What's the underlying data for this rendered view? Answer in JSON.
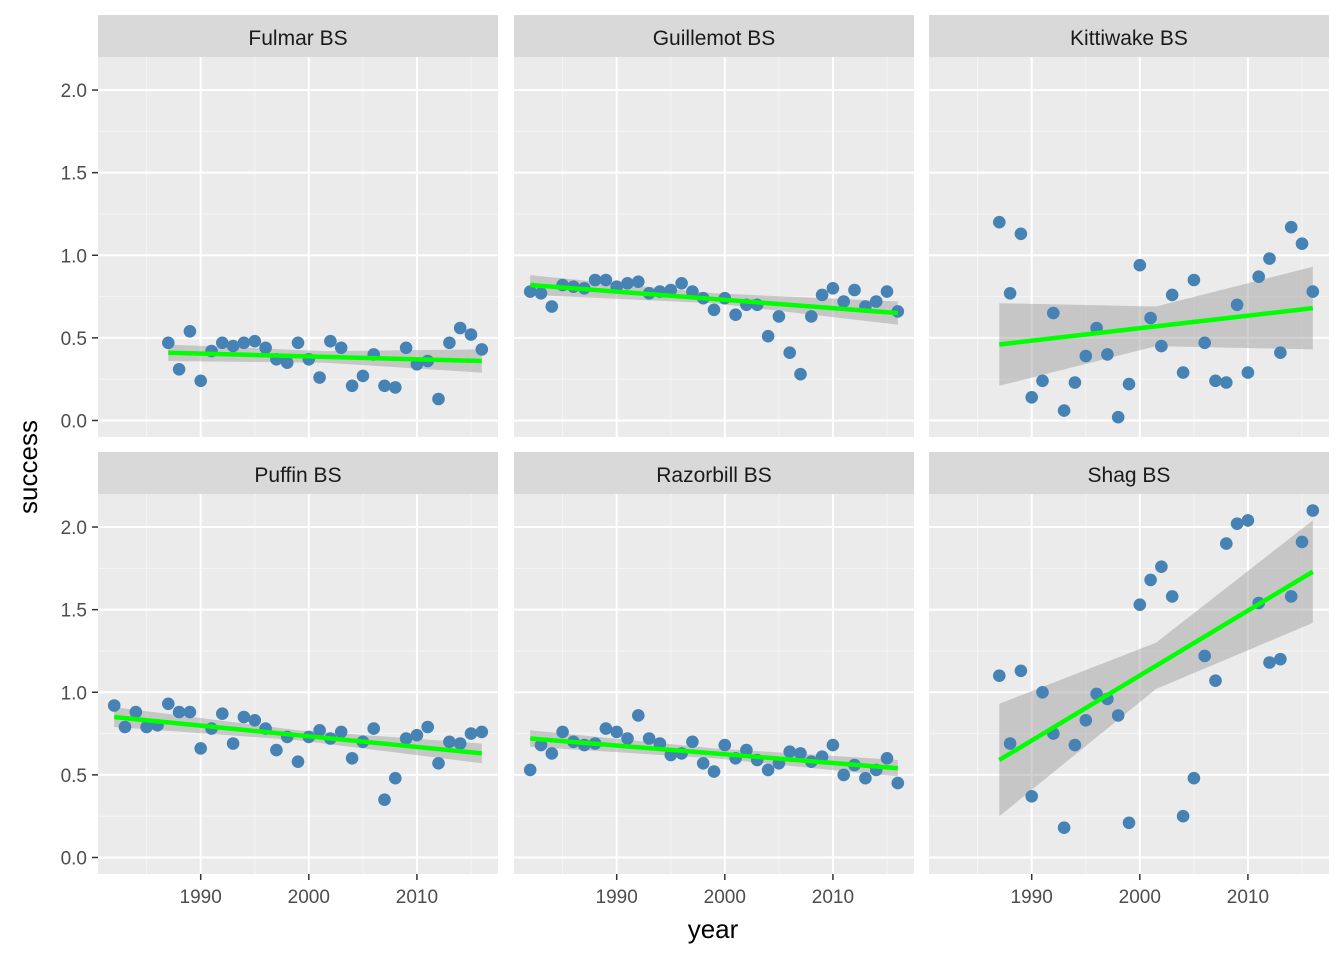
{
  "chart_data": {
    "type": "scatter",
    "xlabel": "year",
    "ylabel": "success",
    "xlim": [
      1980.5,
      2017.5
    ],
    "ylim": [
      -0.1,
      2.2
    ],
    "x_ticks": [
      1990,
      2000,
      2010
    ],
    "y_ticks": [
      0.0,
      0.5,
      1.0,
      1.5,
      2.0
    ],
    "y_tick_labels": [
      "0.0",
      "0.5",
      "1.0",
      "1.5",
      "2.0"
    ],
    "x_tick_labels": [
      "1990",
      "2000",
      "2010"
    ],
    "grid": true,
    "point_color": "#4682B4",
    "trend_color": "#00FF00",
    "band_color": "#999999",
    "panels": [
      {
        "title": "Fulmar BS",
        "x": [
          1987,
          1988,
          1989,
          1990,
          1991,
          1992,
          1993,
          1994,
          1995,
          1996,
          1997,
          1998,
          1999,
          2000,
          2001,
          2002,
          2003,
          2004,
          2005,
          2006,
          2007,
          2008,
          2009,
          2010,
          2011,
          2012,
          2013,
          2014,
          2015,
          2016
        ],
        "y": [
          0.47,
          0.31,
          0.54,
          0.24,
          0.42,
          0.47,
          0.45,
          0.47,
          0.48,
          0.44,
          0.37,
          0.35,
          0.47,
          0.37,
          0.26,
          0.48,
          0.44,
          0.21,
          0.27,
          0.4,
          0.21,
          0.2,
          0.44,
          0.34,
          0.36,
          0.13,
          0.47,
          0.56,
          0.52,
          0.43
        ],
        "trend": {
          "x": [
            1987,
            2016
          ],
          "y": [
            0.41,
            0.36
          ]
        },
        "band": {
          "x": [
            1987,
            2001.5,
            2016
          ],
          "lower": [
            0.36,
            0.35,
            0.29
          ],
          "upper": [
            0.46,
            0.42,
            0.43
          ]
        }
      },
      {
        "title": "Guillemot BS",
        "x": [
          1982,
          1983,
          1984,
          1985,
          1986,
          1987,
          1988,
          1989,
          1990,
          1991,
          1992,
          1993,
          1994,
          1995,
          1996,
          1997,
          1998,
          1999,
          2000,
          2001,
          2002,
          2003,
          2004,
          2005,
          2006,
          2007,
          2008,
          2009,
          2010,
          2011,
          2012,
          2013,
          2014,
          2015,
          2016
        ],
        "y": [
          0.78,
          0.77,
          0.69,
          0.82,
          0.81,
          0.8,
          0.85,
          0.85,
          0.81,
          0.83,
          0.84,
          0.77,
          0.78,
          0.79,
          0.83,
          0.78,
          0.74,
          0.67,
          0.74,
          0.64,
          0.7,
          0.7,
          0.51,
          0.63,
          0.41,
          0.28,
          0.63,
          0.76,
          0.8,
          0.72,
          0.79,
          0.69,
          0.72,
          0.78,
          0.66
        ],
        "trend": {
          "x": [
            1982,
            2016
          ],
          "y": [
            0.82,
            0.65
          ]
        },
        "band": {
          "x": [
            1982,
            1999,
            2016
          ],
          "lower": [
            0.76,
            0.71,
            0.58
          ],
          "upper": [
            0.88,
            0.77,
            0.72
          ]
        }
      },
      {
        "title": "Kittiwake BS",
        "x": [
          1987,
          1988,
          1989,
          1990,
          1991,
          1992,
          1993,
          1994,
          1995,
          1996,
          1997,
          1998,
          1999,
          2000,
          2001,
          2002,
          2003,
          2004,
          2005,
          2006,
          2007,
          2008,
          2009,
          2010,
          2011,
          2012,
          2013,
          2014,
          2015,
          2016
        ],
        "y": [
          1.2,
          0.77,
          1.13,
          0.14,
          0.24,
          0.65,
          0.06,
          0.23,
          0.39,
          0.56,
          0.4,
          0.02,
          0.22,
          0.94,
          0.62,
          0.45,
          0.76,
          0.29,
          0.85,
          0.47,
          0.24,
          0.23,
          0.7,
          0.29,
          0.87,
          0.98,
          0.41,
          1.17,
          1.07,
          0.78
        ],
        "trend": {
          "x": [
            1987,
            2016
          ],
          "y": [
            0.46,
            0.68
          ]
        },
        "band": {
          "x": [
            1987,
            2001.5,
            2016
          ],
          "lower": [
            0.21,
            0.45,
            0.43
          ],
          "upper": [
            0.71,
            0.69,
            0.93
          ]
        }
      },
      {
        "title": "Puffin BS",
        "x": [
          1982,
          1983,
          1984,
          1985,
          1986,
          1987,
          1988,
          1989,
          1990,
          1991,
          1992,
          1993,
          1994,
          1995,
          1996,
          1997,
          1998,
          1999,
          2000,
          2001,
          2002,
          2003,
          2004,
          2005,
          2006,
          2007,
          2008,
          2009,
          2010,
          2011,
          2012,
          2013,
          2014,
          2015,
          2016
        ],
        "y": [
          0.92,
          0.79,
          0.88,
          0.79,
          0.8,
          0.93,
          0.88,
          0.88,
          0.66,
          0.78,
          0.87,
          0.69,
          0.85,
          0.83,
          0.78,
          0.65,
          0.73,
          0.58,
          0.73,
          0.77,
          0.72,
          0.76,
          0.6,
          0.7,
          0.78,
          0.35,
          0.48,
          0.72,
          0.74,
          0.79,
          0.57,
          0.7,
          0.69,
          0.75,
          0.76
        ],
        "trend": {
          "x": [
            1982,
            2016
          ],
          "y": [
            0.85,
            0.63
          ]
        },
        "band": {
          "x": [
            1982,
            1999,
            2016
          ],
          "lower": [
            0.79,
            0.71,
            0.57
          ],
          "upper": [
            0.91,
            0.77,
            0.69
          ]
        }
      },
      {
        "title": "Razorbill BS",
        "x": [
          1982,
          1983,
          1984,
          1985,
          1986,
          1987,
          1988,
          1989,
          1990,
          1991,
          1992,
          1993,
          1994,
          1995,
          1996,
          1997,
          1998,
          1999,
          2000,
          2001,
          2002,
          2003,
          2004,
          2005,
          2006,
          2007,
          2008,
          2009,
          2010,
          2011,
          2012,
          2013,
          2014,
          2015,
          2016
        ],
        "y": [
          0.53,
          0.68,
          0.63,
          0.76,
          0.7,
          0.68,
          0.69,
          0.78,
          0.76,
          0.72,
          0.86,
          0.72,
          0.69,
          0.62,
          0.63,
          0.7,
          0.57,
          0.52,
          0.68,
          0.6,
          0.65,
          0.59,
          0.53,
          0.57,
          0.64,
          0.63,
          0.58,
          0.61,
          0.68,
          0.5,
          0.56,
          0.48,
          0.53,
          0.6,
          0.45
        ],
        "trend": {
          "x": [
            1982,
            2016
          ],
          "y": [
            0.72,
            0.54
          ]
        },
        "band": {
          "x": [
            1982,
            1999,
            2016
          ],
          "lower": [
            0.67,
            0.6,
            0.49
          ],
          "upper": [
            0.77,
            0.66,
            0.59
          ]
        }
      },
      {
        "title": "Shag BS",
        "x": [
          1987,
          1988,
          1989,
          1990,
          1991,
          1992,
          1993,
          1994,
          1995,
          1996,
          1997,
          1998,
          1999,
          2000,
          2001,
          2002,
          2003,
          2004,
          2005,
          2006,
          2007,
          2008,
          2009,
          2010,
          2011,
          2012,
          2013,
          2014,
          2015,
          2016
        ],
        "y": [
          1.1,
          0.69,
          1.13,
          0.37,
          1.0,
          0.75,
          0.18,
          0.68,
          0.83,
          0.99,
          0.96,
          0.86,
          0.21,
          1.53,
          1.68,
          1.76,
          1.58,
          0.25,
          0.48,
          1.22,
          1.07,
          1.9,
          2.02,
          2.04,
          1.54,
          1.18,
          1.2,
          1.58,
          1.91,
          2.1
        ],
        "trend": {
          "x": [
            1987,
            2016
          ],
          "y": [
            0.59,
            1.73
          ]
        },
        "band": {
          "x": [
            1987,
            2001.5,
            2016
          ],
          "lower": [
            0.25,
            1.02,
            1.42
          ],
          "upper": [
            0.93,
            1.3,
            2.04
          ]
        }
      }
    ]
  }
}
